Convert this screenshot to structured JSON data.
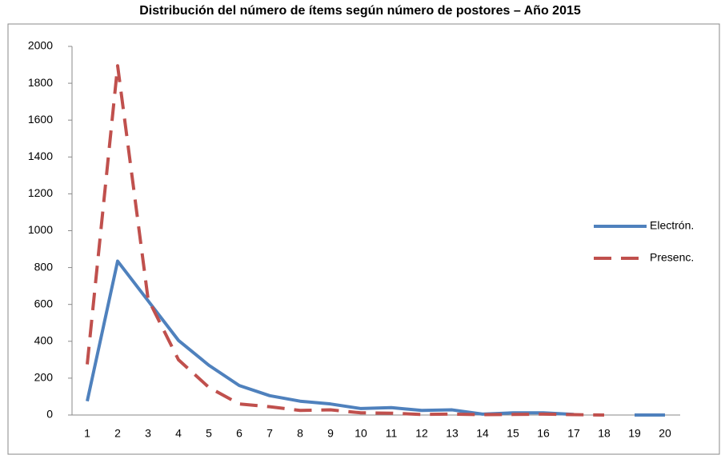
{
  "chart_data": {
    "type": "line",
    "title": "Distribución del número de ítems según número de postores – Año 2015",
    "categories": [
      "1",
      "2",
      "3",
      "4",
      "5",
      "6",
      "7",
      "8",
      "9",
      "10",
      "11",
      "12",
      "13",
      "14",
      "15",
      "16",
      "17",
      "18",
      "19",
      "20"
    ],
    "series": [
      {
        "name": "Electrón.",
        "color": "#4f81bd",
        "dash": false,
        "values": [
          75,
          835,
          620,
          405,
          270,
          160,
          105,
          75,
          60,
          35,
          40,
          25,
          28,
          5,
          12,
          12,
          3,
          null,
          0,
          0
        ]
      },
      {
        "name": "Presenc.",
        "color": "#c0504d",
        "dash": true,
        "values": [
          275,
          1895,
          630,
          300,
          150,
          60,
          45,
          25,
          28,
          12,
          10,
          3,
          5,
          2,
          3,
          5,
          2,
          0,
          null,
          null
        ]
      }
    ],
    "ylim": [
      0,
      2000
    ],
    "yticks": [
      0,
      200,
      400,
      600,
      800,
      1000,
      1200,
      1400,
      1600,
      1800,
      2000
    ],
    "grid": false,
    "legend": "right"
  }
}
